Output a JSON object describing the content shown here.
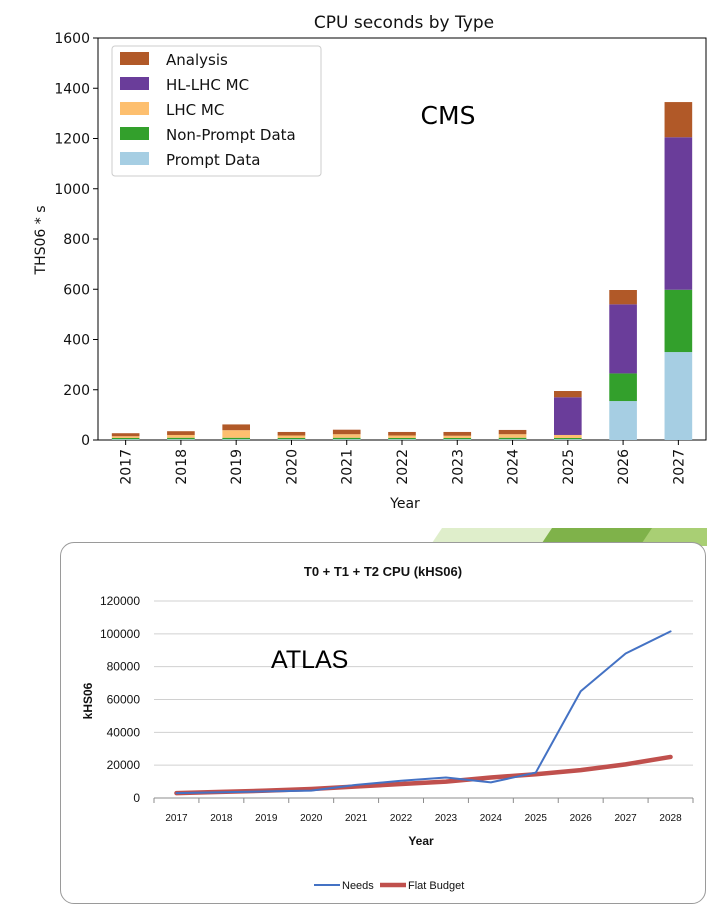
{
  "chart_data": [
    {
      "type": "bar",
      "stacked": true,
      "title": "CPU seconds by Type",
      "annotation": "CMS",
      "xlabel": "Year",
      "ylabel": "THS06 * s",
      "ylim": [
        0,
        1600
      ],
      "yticks": [
        0,
        200,
        400,
        600,
        800,
        1000,
        1200,
        1400,
        1600
      ],
      "legend_placement": "top-left",
      "categories": [
        "2017",
        "2018",
        "2019",
        "2020",
        "2021",
        "2022",
        "2023",
        "2024",
        "2025",
        "2026",
        "2027"
      ],
      "series": [
        {
          "name": "Prompt Data",
          "color": "#a6cee3",
          "values": [
            3,
            3,
            3,
            3,
            3,
            3,
            3,
            3,
            3,
            155,
            350
          ]
        },
        {
          "name": "Non-Prompt Data",
          "color": "#33a02c",
          "values": [
            5,
            6,
            6,
            5,
            6,
            5,
            5,
            6,
            5,
            110,
            248
          ]
        },
        {
          "name": "LHC MC",
          "color": "#fdbf6f",
          "values": [
            7,
            11,
            30,
            10,
            14,
            10,
            9,
            14,
            12,
            0,
            0
          ]
        },
        {
          "name": "HL-LHC MC",
          "color": "#6a3d9a",
          "values": [
            0,
            0,
            0,
            0,
            0,
            0,
            0,
            0,
            150,
            275,
            607
          ]
        },
        {
          "name": "Analysis",
          "color": "#b15928",
          "values": [
            12,
            15,
            23,
            14,
            18,
            14,
            15,
            17,
            25,
            57,
            140
          ]
        }
      ]
    },
    {
      "type": "line",
      "title": "T0 + T1 + T2 CPU (kHS06)",
      "annotation": "ATLAS",
      "xlabel": "Year",
      "ylabel": "kHS06",
      "ylim": [
        0,
        120000
      ],
      "yticks": [
        "0",
        "20000",
        "40000",
        "60000",
        "80000",
        "100000",
        "120000"
      ],
      "grid": true,
      "legend_placement": "bottom",
      "categories": [
        "2017",
        "2018",
        "2019",
        "2020",
        "2021",
        "2022",
        "2023",
        "2024",
        "2025",
        "2026",
        "2027",
        "2028"
      ],
      "series": [
        {
          "name": "Needs",
          "color": "#4472c4",
          "values": [
            3000,
            3500,
            4000,
            4500,
            8000,
            10500,
            12500,
            9500,
            15500,
            65000,
            88000,
            101500
          ]
        },
        {
          "name": "Flat Budget",
          "color": "#c0504d",
          "values": [
            3000,
            3700,
            4500,
            5500,
            7000,
            8500,
            10000,
            12500,
            14500,
            17000,
            20500,
            25000
          ]
        }
      ]
    }
  ]
}
